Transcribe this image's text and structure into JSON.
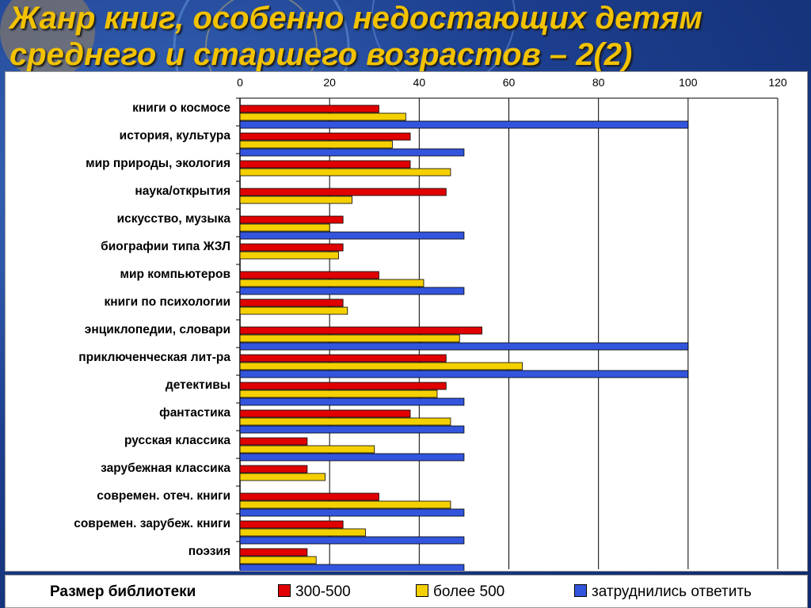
{
  "slide": {
    "title": "Жанр книг, особенно недостающих детям среднего и старшего возрастов – 2(2)"
  },
  "colors": {
    "series_300_500": "#e00000",
    "series_more_500": "#f5d000",
    "series_hard": "#3355dd",
    "title_text": "#f2c200"
  },
  "legend": {
    "title": "Размер библиотеки",
    "items": [
      "300-500",
      "более 500",
      "затруднились ответить"
    ]
  },
  "chart_data": {
    "type": "bar",
    "orientation": "horizontal",
    "title": "",
    "xlabel": "",
    "ylabel": "",
    "xlim": [
      0,
      120
    ],
    "x_ticks": [
      0,
      20,
      40,
      60,
      80,
      100,
      120
    ],
    "grid": true,
    "legend_placement": "bottom",
    "categories": [
      "книги о космосе",
      "история, культура",
      "мир природы, экология",
      "наука/открытия",
      "искусство, музыка",
      "биографии типа ЖЗЛ",
      "мир компьютеров",
      "книги по психологии",
      "энциклопедии, словари",
      "приключенческая лит-ра",
      "детективы",
      "фантастика",
      "русская классика",
      "зарубежная классика",
      "современ. отеч. книги",
      "современ. зарубеж. книги",
      "поэзия"
    ],
    "series": [
      {
        "name": "300-500",
        "color": "#e00000",
        "values": [
          31,
          38,
          38,
          46,
          23,
          23,
          31,
          23,
          54,
          46,
          46,
          38,
          15,
          15,
          31,
          23,
          15
        ]
      },
      {
        "name": "более 500",
        "color": "#f5d000",
        "values": [
          37,
          34,
          47,
          25,
          20,
          22,
          41,
          24,
          49,
          63,
          44,
          47,
          30,
          19,
          47,
          28,
          17
        ]
      },
      {
        "name": "затруднились ответить",
        "color": "#3355dd",
        "values": [
          100,
          50,
          0,
          0,
          50,
          0,
          50,
          0,
          100,
          100,
          50,
          50,
          50,
          0,
          50,
          50,
          50
        ]
      }
    ]
  }
}
